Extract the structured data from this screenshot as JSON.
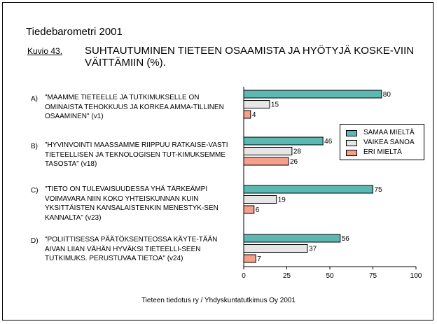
{
  "header": {
    "title": "Tiedebarometri 2001",
    "figure_label": "Kuvio 43.",
    "figure_title": "SUHTAUTUMINEN TIETEEN OSAAMISTA JA HYÖTYJÄ KOSKE-VIIN VÄITTÄMIIN (%)."
  },
  "questions": [
    {
      "letter": "A)",
      "text": "\"MAAMME TIETEELLE JA TUTKIMUKSELLE ON OMINAISTA TEHOKKUUS JA KORKEA AMMA-TILLINEN OSAAMINEN\" (v1)"
    },
    {
      "letter": "B)",
      "text": "\"HYVINVOINTI MAASSAMME RIIPPUU RATKAISE-VASTI TIETEELLISEN JA TEKNOLOGISEN TUT-KIMUKSEMME TASOSTA\" (v18)"
    },
    {
      "letter": "C)",
      "text": "\"TIETO ON TULEVAISUUDESSA YHÄ TÄRKEÄMPI VOIMAVARA NIIN KOKO YHTEISKUNNAN KUIN YKSITTÄISTEN KANSALAISTENKIN MENESTYK-SEN KANNALTA\" (v23)"
    },
    {
      "letter": "D)",
      "text": "\"POLIITTISESSA PÄÄTÖKSENTEOSSA KÄYTE-TÄÄN AIVAN LIIAN VÄHÄN HYVÄKSI TIETEELLI-SEEN TUTKIMUKS. PERUSTUVAA TIETOA\" (v24)"
    }
  ],
  "legend": {
    "items": [
      {
        "label": "SAMAA MIELTÄ",
        "color": "#5cb8b2"
      },
      {
        "label": "VAIKEA SANOA",
        "color": "#e6e6e6"
      },
      {
        "label": "ERI MIELTÄ",
        "color": "#f4a08a"
      }
    ]
  },
  "footer": {
    "source": "Tieteen tiedotus ry / Yhdyskuntatutkimus Oy 2001"
  },
  "chart_data": {
    "type": "bar",
    "orientation": "horizontal",
    "title": "SUHTAUTUMINEN TIETEEN OSAAMISTA JA HYÖTYJÄ KOSKE-VIIN VÄITTÄMIIN (%).",
    "categories": [
      "A)",
      "B)",
      "C)",
      "D)"
    ],
    "series": [
      {
        "name": "SAMAA MIELTÄ",
        "color": "#5cb8b2",
        "values": [
          80,
          46,
          75,
          56
        ]
      },
      {
        "name": "VAIKEA SANOA",
        "color": "#e6e6e6",
        "values": [
          15,
          28,
          19,
          37
        ]
      },
      {
        "name": "ERI MIELTÄ",
        "color": "#f4a08a",
        "values": [
          4,
          26,
          6,
          7
        ]
      }
    ],
    "xlim": [
      0,
      100
    ],
    "xticks": [
      0,
      25,
      50,
      75,
      100
    ],
    "xlabel": "",
    "ylabel": "",
    "grid": false,
    "legend_position": "right"
  }
}
